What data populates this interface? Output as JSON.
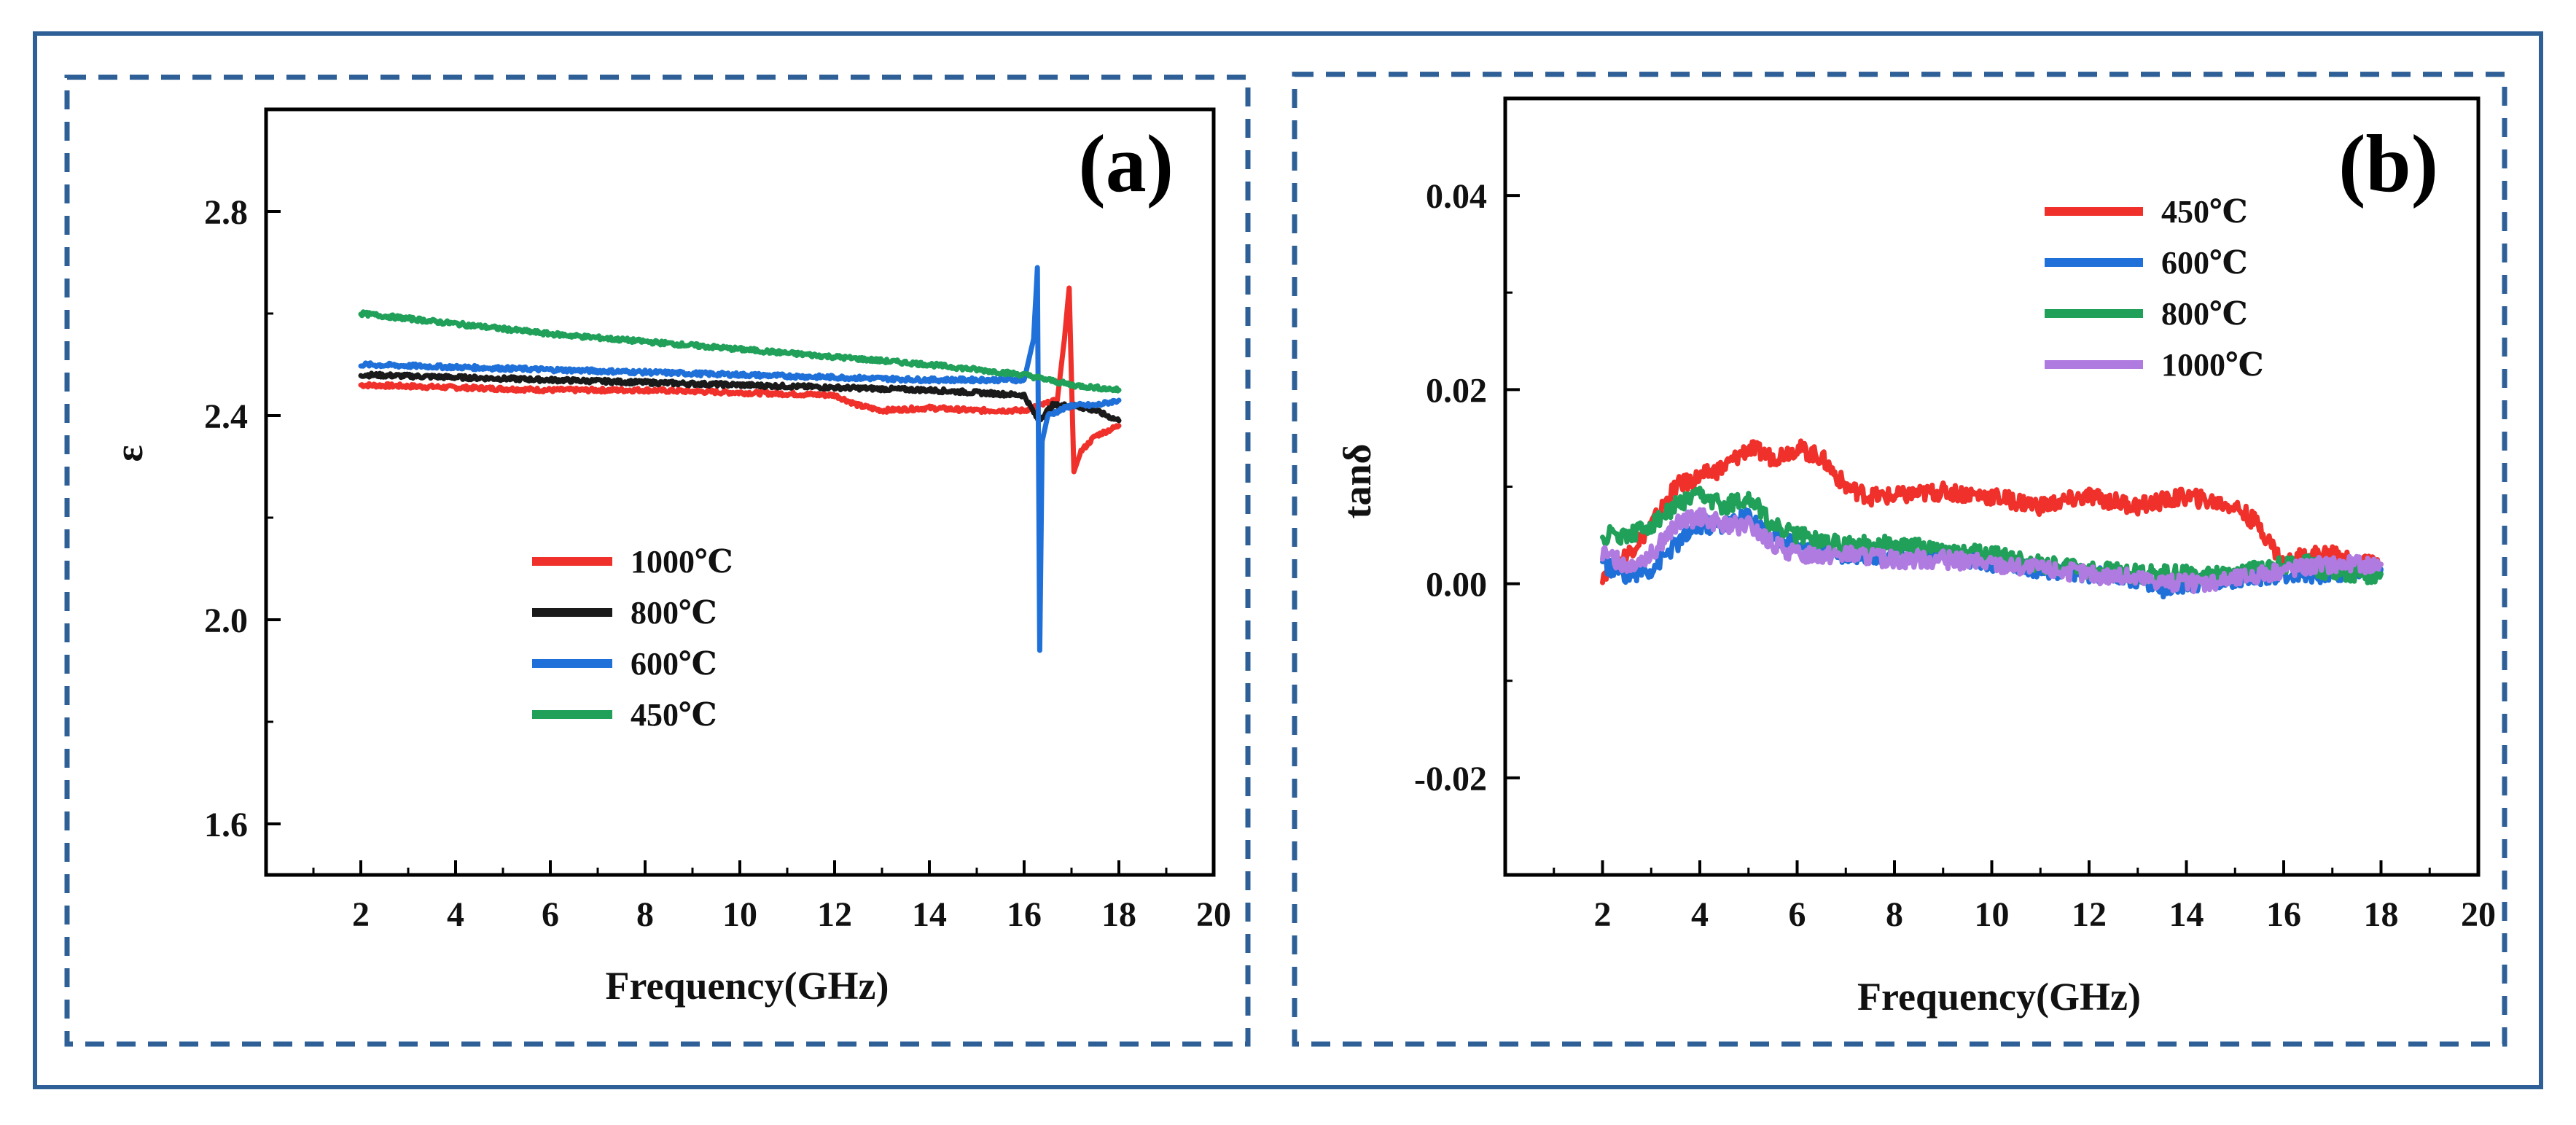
{
  "colors": {
    "frame": "#2e5f96"
  },
  "chart_data": [
    {
      "type": "line",
      "panel_label": "(a)",
      "xlabel": "Frequency(GHz)",
      "ylabel": "ε",
      "xlim": [
        0,
        20
      ],
      "ylim": [
        1.5,
        3.0
      ],
      "xticks": [
        2,
        4,
        6,
        8,
        10,
        12,
        14,
        16,
        18,
        20
      ],
      "xtick_labels": [
        "2",
        "4",
        "6",
        "8",
        "10",
        "12",
        "14",
        "16",
        "18",
        "20"
      ],
      "yticks": [
        1.6,
        2.0,
        2.4,
        2.8
      ],
      "ytick_labels": [
        "1.6",
        "2.0",
        "2.4",
        "2.8"
      ],
      "legend": [
        "1000℃",
        "800℃",
        "600℃",
        "450℃"
      ],
      "series": [
        {
          "name": "1000℃",
          "color": "#f0302a",
          "x": [
            2,
            4,
            6,
            8,
            10,
            12,
            12.5,
            13,
            14,
            15,
            16,
            16.7,
            16.85,
            16.95,
            17.05,
            17.2,
            17.5,
            18
          ],
          "y": [
            2.46,
            2.455,
            2.45,
            2.45,
            2.445,
            2.44,
            2.42,
            2.41,
            2.415,
            2.41,
            2.41,
            2.43,
            2.55,
            2.65,
            2.29,
            2.33,
            2.36,
            2.38
          ]
        },
        {
          "name": "800℃",
          "color": "#1a1a1a",
          "x": [
            2,
            4,
            6,
            8,
            10,
            12,
            14,
            15,
            16,
            16.3,
            16.6,
            17,
            17.5,
            18
          ],
          "y": [
            2.48,
            2.475,
            2.47,
            2.465,
            2.46,
            2.455,
            2.45,
            2.445,
            2.44,
            2.39,
            2.42,
            2.42,
            2.41,
            2.39
          ]
        },
        {
          "name": "600℃",
          "color": "#1f70d8",
          "x": [
            2,
            4,
            6,
            8,
            10,
            12,
            14,
            15,
            16,
            16.2,
            16.28,
            16.33,
            16.38,
            16.5,
            17,
            17.5,
            18
          ],
          "y": [
            2.5,
            2.495,
            2.49,
            2.485,
            2.48,
            2.475,
            2.47,
            2.47,
            2.47,
            2.55,
            2.69,
            1.94,
            2.35,
            2.4,
            2.42,
            2.42,
            2.43
          ]
        },
        {
          "name": "450℃",
          "color": "#21a05a",
          "x": [
            2,
            4,
            6,
            8,
            10,
            12,
            14,
            15,
            16,
            16.5,
            17,
            17.5,
            18
          ],
          "y": [
            2.6,
            2.58,
            2.56,
            2.545,
            2.53,
            2.515,
            2.5,
            2.49,
            2.48,
            2.47,
            2.46,
            2.455,
            2.45
          ]
        }
      ]
    },
    {
      "type": "line",
      "panel_label": "(b)",
      "xlabel": "Frequency(GHz)",
      "ylabel": "tanδ",
      "xlim": [
        0,
        20
      ],
      "ylim": [
        -0.03,
        0.05
      ],
      "xticks": [
        2,
        4,
        6,
        8,
        10,
        12,
        14,
        16,
        18,
        20
      ],
      "xtick_labels": [
        "2",
        "4",
        "6",
        "8",
        "10",
        "12",
        "14",
        "16",
        "18",
        "20"
      ],
      "yticks": [
        -0.02,
        0.0,
        0.02,
        0.04
      ],
      "ytick_labels": [
        "-0.02",
        "0.00",
        "0.02",
        "0.04"
      ],
      "legend": [
        "450℃",
        "600℃",
        "800℃",
        "1000℃"
      ],
      "series": [
        {
          "name": "450℃",
          "color": "#f0302a",
          "x": [
            2,
            2.5,
            3,
            3.5,
            4,
            4.5,
            5,
            5.5,
            6,
            6.5,
            7,
            7.5,
            8,
            9,
            10,
            11,
            12,
            13,
            14,
            15,
            15.5,
            16,
            16.5,
            17,
            17.5,
            18
          ],
          "y": [
            0.001,
            0.003,
            0.006,
            0.01,
            0.011,
            0.012,
            0.014,
            0.013,
            0.014,
            0.013,
            0.01,
            0.009,
            0.009,
            0.0095,
            0.009,
            0.008,
            0.009,
            0.008,
            0.009,
            0.008,
            0.006,
            0.002,
            0.003,
            0.003,
            0.002,
            0.002
          ]
        },
        {
          "name": "600℃",
          "color": "#1f70d8",
          "x": [
            2,
            2.5,
            3,
            3.5,
            4,
            4.5,
            5,
            5.5,
            6,
            7,
            8,
            9,
            10,
            11,
            12,
            13,
            13.5,
            14,
            15,
            16,
            17,
            18
          ],
          "y": [
            0.002,
            0.001,
            0.0015,
            0.004,
            0.006,
            0.006,
            0.007,
            0.005,
            0.004,
            0.003,
            0.003,
            0.003,
            0.002,
            0.0015,
            0.001,
            0.0005,
            -0.0005,
            0.0,
            0.0005,
            0.001,
            0.001,
            0.0015
          ]
        },
        {
          "name": "800℃",
          "color": "#21a05a",
          "x": [
            2,
            2.5,
            3,
            3.5,
            4,
            4.5,
            5,
            5.5,
            6,
            7,
            8,
            9,
            10,
            11,
            12,
            13,
            14,
            15,
            16,
            16.5,
            17,
            17.5,
            18
          ],
          "y": [
            0.005,
            0.005,
            0.006,
            0.008,
            0.009,
            0.008,
            0.009,
            0.006,
            0.005,
            0.004,
            0.004,
            0.0035,
            0.003,
            0.002,
            0.0015,
            0.001,
            0.001,
            0.001,
            0.002,
            0.002,
            0.001,
            0.001,
            0.001
          ]
        },
        {
          "name": "1000℃",
          "color": "#b07be0",
          "x": [
            2,
            2.5,
            3,
            3.5,
            4,
            4.5,
            5,
            5.5,
            6,
            7,
            8,
            9,
            10,
            11,
            12,
            13,
            14,
            15,
            16,
            17,
            18
          ],
          "y": [
            0.003,
            0.002,
            0.003,
            0.006,
            0.007,
            0.006,
            0.006,
            0.004,
            0.003,
            0.003,
            0.0025,
            0.0025,
            0.002,
            0.0015,
            0.001,
            0.0005,
            0.0,
            0.0005,
            0.0015,
            0.002,
            0.002
          ]
        }
      ]
    }
  ]
}
